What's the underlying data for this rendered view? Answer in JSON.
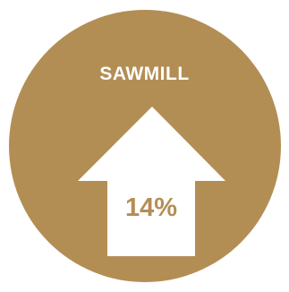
{
  "label": "SAWMILL",
  "value_text": "14%",
  "icon": "up-arrow-icon",
  "colors": {
    "circle": "#B38E54",
    "arrow": "#FFFFFF",
    "label": "#FFFFFF",
    "value": "#B38E54"
  }
}
